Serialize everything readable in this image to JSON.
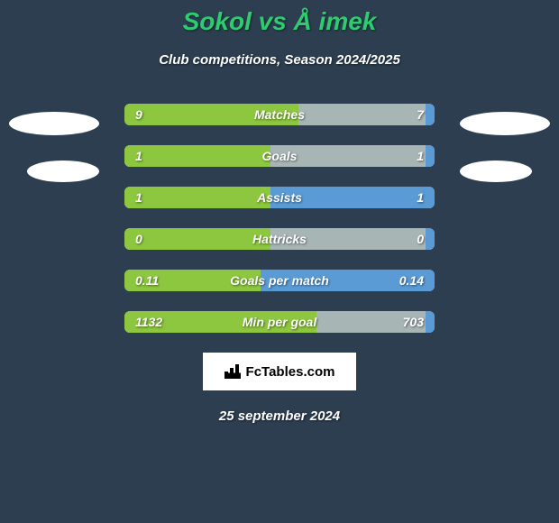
{
  "title": "Sokol vs Å imek",
  "subtitle": "Club competitions, Season 2024/2025",
  "date": "25 september 2024",
  "logo_text": "FcTables.com",
  "colors": {
    "background": "#2c3e50",
    "title_color": "#2ecc71",
    "left_fill": "#8dc63f",
    "right_fill": "#5b9bd5",
    "bar_bg": "#a8b5b5",
    "text": "#ffffff"
  },
  "stats": [
    {
      "label": "Matches",
      "left_value": "9",
      "right_value": "7",
      "left_pct": 56,
      "right_pct": 3
    },
    {
      "label": "Goals",
      "left_value": "1",
      "right_value": "1",
      "left_pct": 47,
      "right_pct": 3
    },
    {
      "label": "Assists",
      "left_value": "1",
      "right_value": "1",
      "left_pct": 47,
      "right_pct": 53
    },
    {
      "label": "Hattricks",
      "left_value": "0",
      "right_value": "0",
      "left_pct": 47,
      "right_pct": 3
    },
    {
      "label": "Goals per match",
      "left_value": "0.11",
      "right_value": "0.14",
      "left_pct": 44,
      "right_pct": 56
    },
    {
      "label": "Min per goal",
      "left_value": "1132",
      "right_value": "703",
      "left_pct": 62,
      "right_pct": 3
    }
  ]
}
